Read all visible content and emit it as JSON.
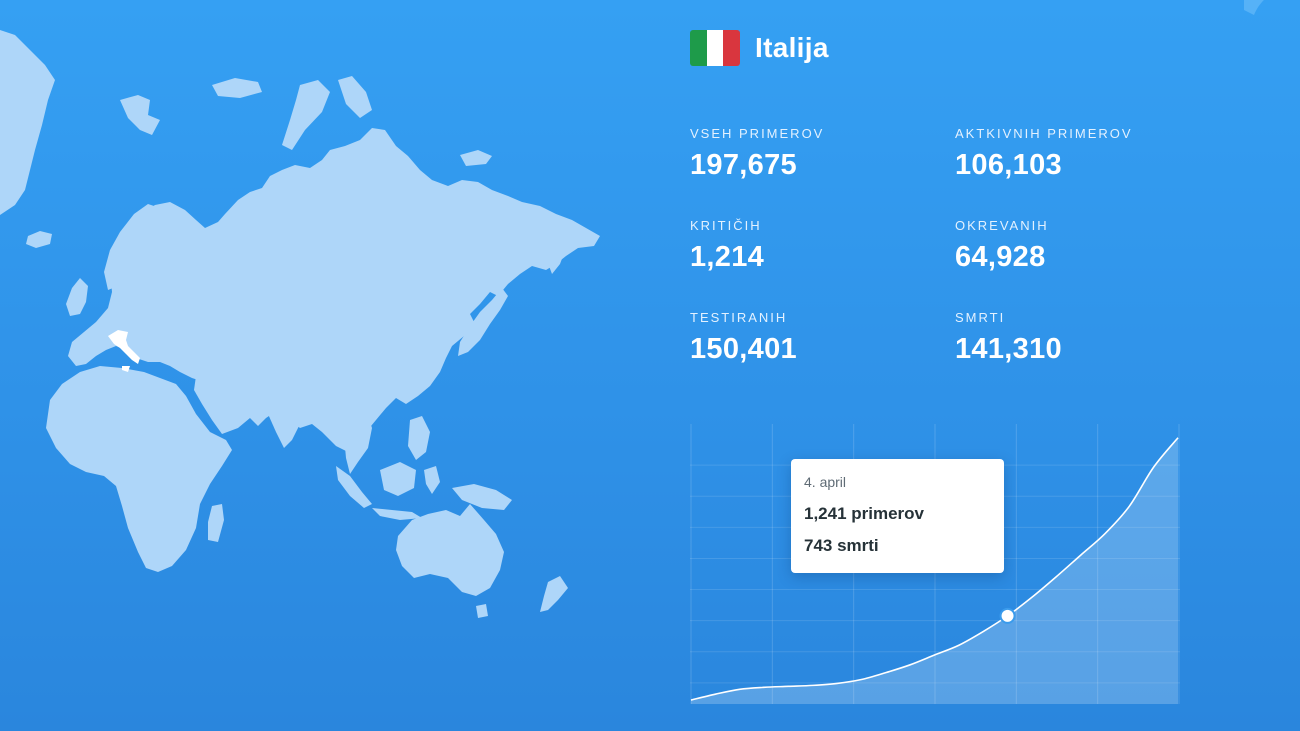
{
  "country": {
    "name": "Italija",
    "flag_colors": [
      "#1e9b4a",
      "#ffffff",
      "#d9363e"
    ]
  },
  "stats": [
    {
      "label": "VSEH PRIMEROV",
      "value": "197,675"
    },
    {
      "label": "AKTKIVNIH PRIMEROV",
      "value": "106,103"
    },
    {
      "label": "KRITIČIH",
      "value": "1,214"
    },
    {
      "label": "OKREVANIH",
      "value": "64,928"
    },
    {
      "label": "TESTIRANIH",
      "value": "150,401"
    },
    {
      "label": "SMRTI",
      "value": "141,310"
    }
  ],
  "tooltip": {
    "date": "4. april",
    "cases": "1,241 primerov",
    "deaths": "743 smrti"
  },
  "chart_data": {
    "type": "area",
    "title": "",
    "xlabel": "",
    "ylabel": "",
    "x": [
      0,
      1,
      2,
      3,
      4,
      5,
      6,
      7,
      8,
      9,
      10,
      11,
      12,
      13,
      14,
      15,
      16,
      17,
      18,
      19,
      20
    ],
    "values": [
      2,
      8,
      13,
      15,
      16,
      17,
      19,
      23,
      30,
      38,
      48,
      58,
      72,
      88,
      107,
      128,
      150,
      172,
      200,
      240,
      270
    ],
    "ylim": [
      0,
      280
    ],
    "grid": true,
    "highlight_index": 13,
    "line_color": "#ffffff",
    "map_highlight": "Italy"
  }
}
